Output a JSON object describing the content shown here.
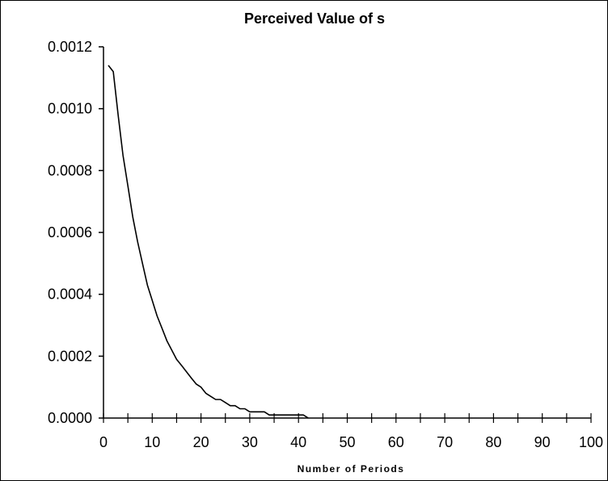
{
  "chart_data": {
    "type": "line",
    "title": "Perceived Value of s",
    "xlabel": "Number of Periods",
    "ylabel": "",
    "xlim": [
      0,
      100
    ],
    "ylim": [
      0,
      0.0012
    ],
    "xticks": [
      0,
      10,
      20,
      30,
      40,
      50,
      60,
      70,
      80,
      90,
      100
    ],
    "xtick_labels": [
      "0",
      "10",
      "20",
      "30",
      "40",
      "50",
      "60",
      "70",
      "80",
      "90",
      "100"
    ],
    "yticks": [
      0,
      0.0002,
      0.0004,
      0.0006,
      0.0008,
      0.001,
      0.0012
    ],
    "ytick_labels": [
      "0.0000",
      "0.0002",
      "0.0004",
      "0.0006",
      "0.0008",
      "0.0010",
      "0.0012"
    ],
    "grid": false,
    "legend": "none",
    "series": [
      {
        "color": "#000000",
        "x": [
          1,
          2,
          3,
          4,
          5,
          6,
          7,
          8,
          9,
          10,
          11,
          12,
          13,
          14,
          15,
          16,
          17,
          18,
          19,
          20,
          21,
          22,
          23,
          24,
          25,
          26,
          27,
          28,
          29,
          30,
          31,
          32,
          33,
          34,
          35,
          36,
          37,
          38,
          39,
          40,
          41,
          42
        ],
        "y": [
          0.00114,
          0.00112,
          0.00098,
          0.00085,
          0.00075,
          0.00065,
          0.00057,
          0.0005,
          0.00043,
          0.00038,
          0.00033,
          0.00029,
          0.00025,
          0.00022,
          0.00019,
          0.00017,
          0.00015,
          0.00013,
          0.00011,
          0.0001,
          8e-05,
          7e-05,
          6e-05,
          6e-05,
          5e-05,
          4e-05,
          4e-05,
          3e-05,
          3e-05,
          2e-05,
          2e-05,
          2e-05,
          2e-05,
          1e-05,
          1e-05,
          1e-05,
          1e-05,
          1e-05,
          1e-05,
          1e-05,
          1e-05,
          0
        ]
      }
    ]
  }
}
